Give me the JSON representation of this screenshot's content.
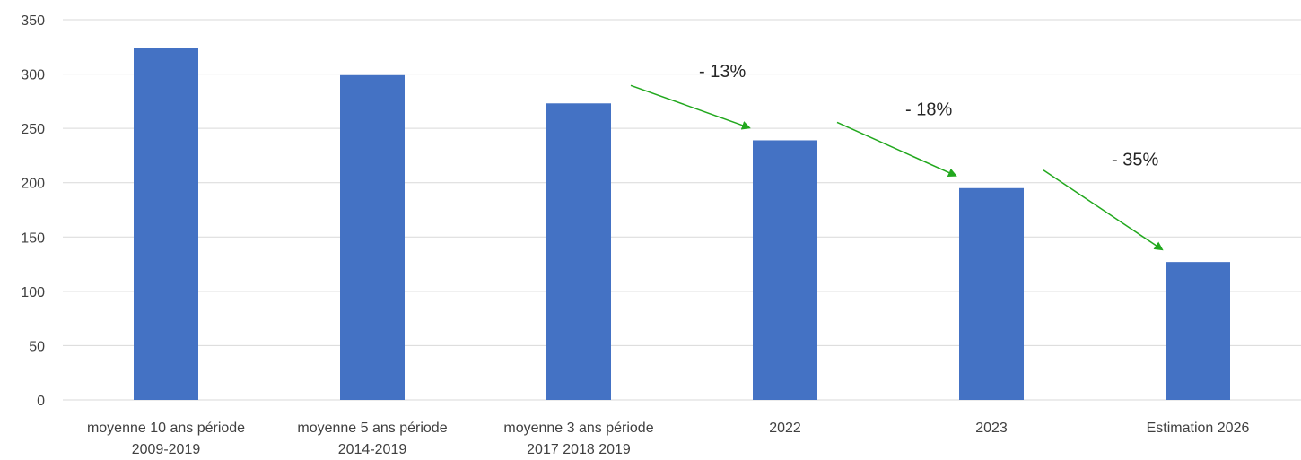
{
  "chart_data": {
    "type": "bar",
    "categories": [
      [
        "moyenne 10 ans période",
        "2009-2019"
      ],
      [
        "moyenne 5 ans période",
        "2014-2019"
      ],
      [
        "moyenne 3 ans période",
        "2017 2018 2019"
      ],
      [
        "2022"
      ],
      [
        "2023"
      ],
      [
        "Estimation 2026"
      ]
    ],
    "values": [
      324,
      299,
      273,
      239,
      195,
      127
    ],
    "ylim": [
      0,
      350
    ],
    "yticks": [
      0,
      50,
      100,
      150,
      200,
      250,
      300,
      350
    ],
    "grid": true,
    "bar_color": "#4472c4",
    "grid_color": "#d9d9d9",
    "title": "",
    "xlabel": "",
    "ylabel": "",
    "annotations": [
      {
        "label": "- 13%",
        "from_category": 2,
        "to_category": 3,
        "color": "#22a81e"
      },
      {
        "label": "- 18%",
        "from_category": 3,
        "to_category": 4,
        "color": "#22a81e"
      },
      {
        "label": "- 35%",
        "from_category": 4,
        "to_category": 5,
        "color": "#22a81e"
      }
    ]
  }
}
